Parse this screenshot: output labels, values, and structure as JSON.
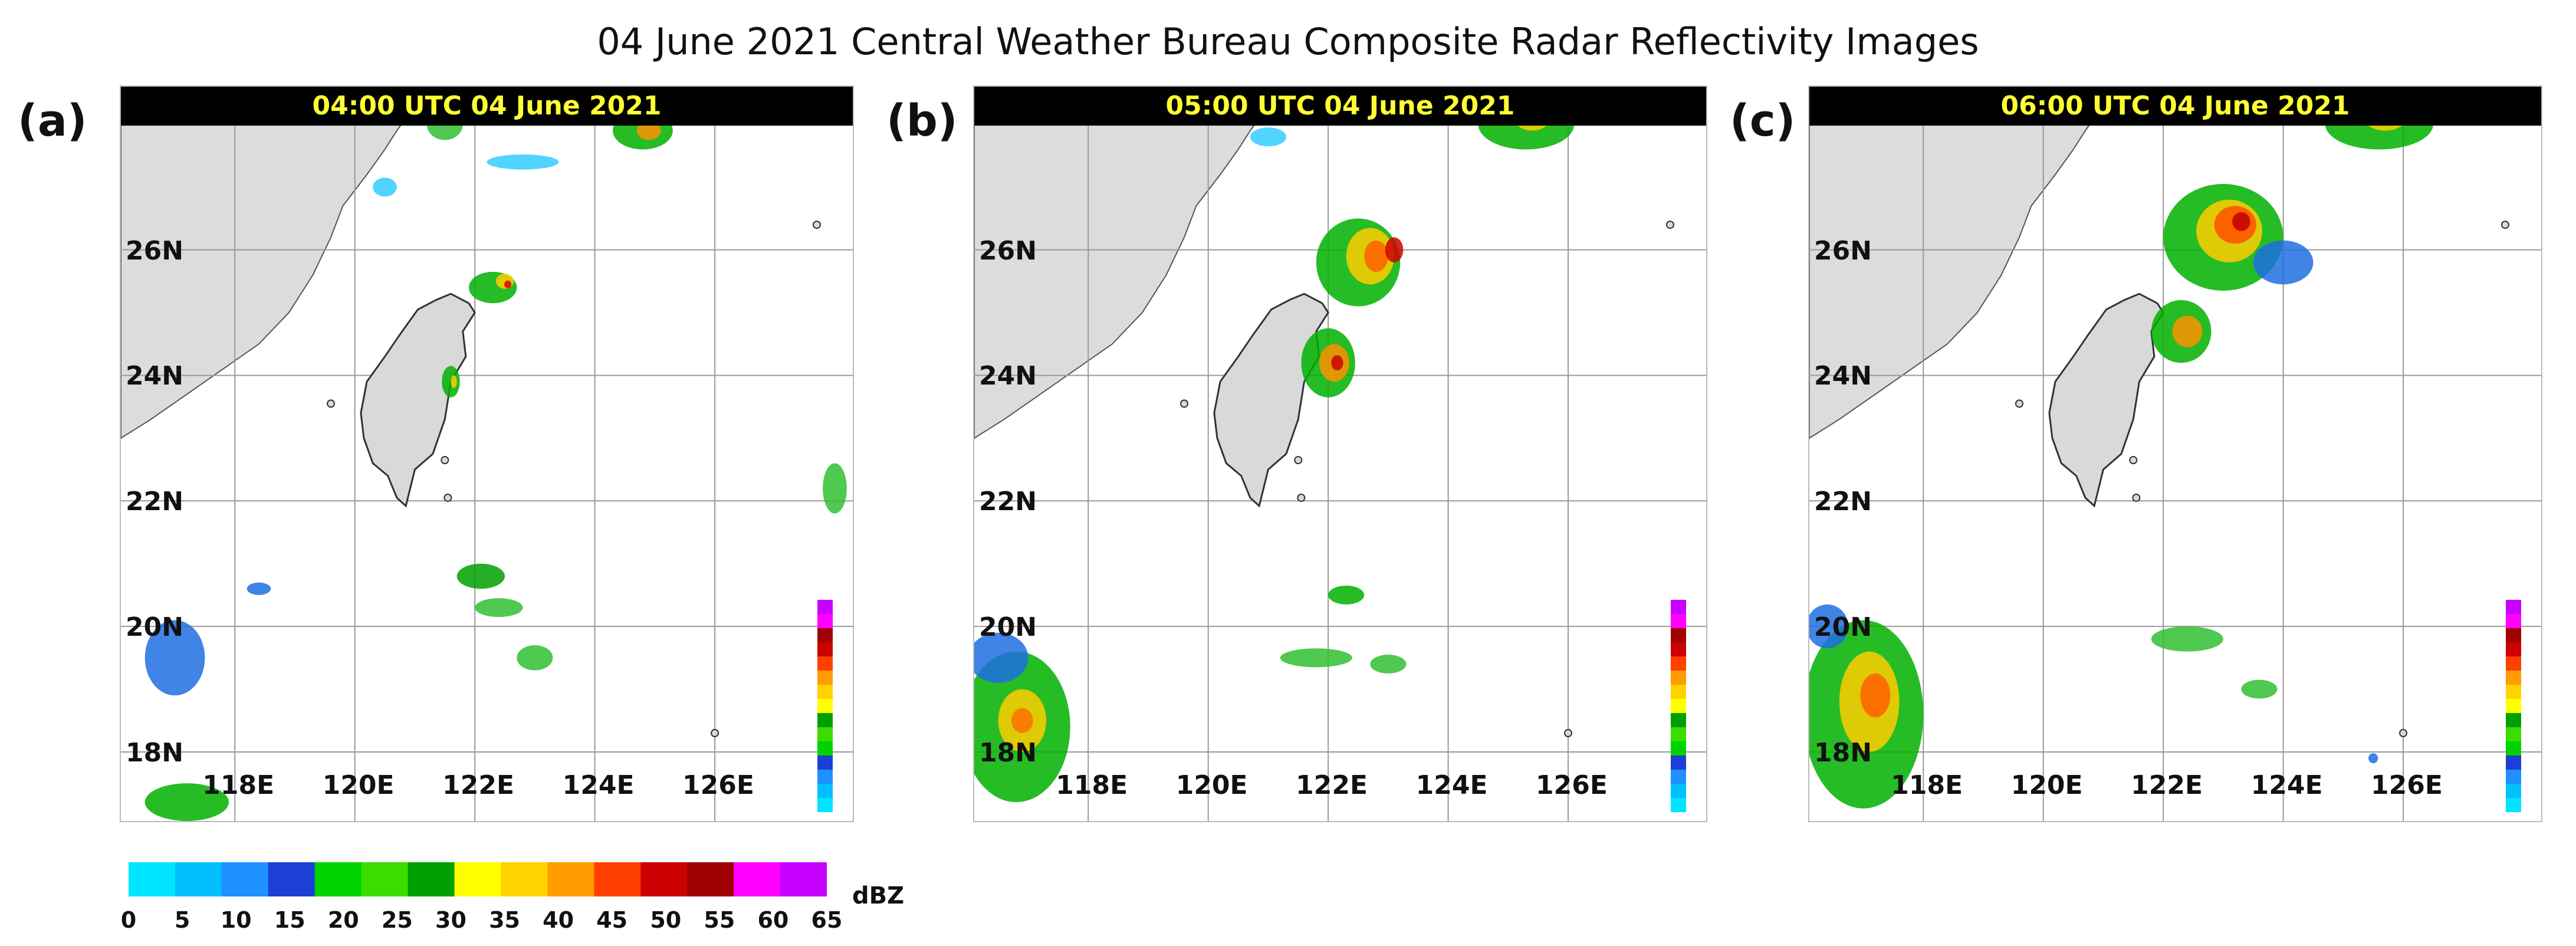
{
  "figure_title": "04 June 2021 Central Weather Bureau Composite Radar Reflectivity Images",
  "panels": [
    {
      "label": "(a)",
      "time": "04:00 UTC 04 June 2021"
    },
    {
      "label": "(b)",
      "time": "05:00 UTC 04 June 2021"
    },
    {
      "label": "(c)",
      "time": "06:00 UTC 04 June 2021"
    }
  ],
  "lat_labels": [
    "26N",
    "24N",
    "22N",
    "20N",
    "18N"
  ],
  "lon_labels": [
    "118E",
    "120E",
    "122E",
    "124E",
    "126E"
  ],
  "colorbar": {
    "unit": "dBZ",
    "ticks": [
      "0",
      "5",
      "10",
      "15",
      "20",
      "25",
      "30",
      "35",
      "40",
      "45",
      "50",
      "55",
      "60",
      "65"
    ],
    "colors": [
      "#00e5ff",
      "#00bfff",
      "#1e90ff",
      "#1c3fd8",
      "#00d400",
      "#3cdc00",
      "#00a000",
      "#ffff00",
      "#ffd200",
      "#ff9c00",
      "#ff4000",
      "#cc0000",
      "#a00000",
      "#ff00ff",
      "#c800ff"
    ]
  }
}
